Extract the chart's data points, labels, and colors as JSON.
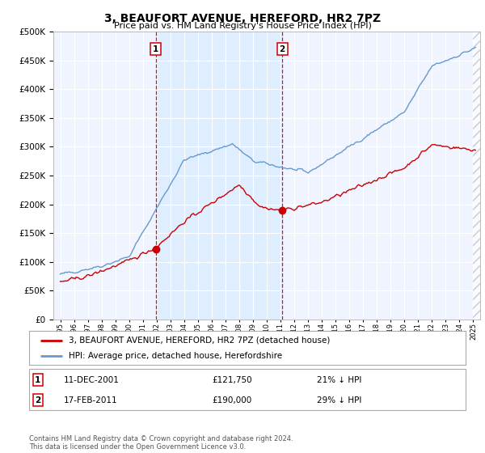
{
  "title": "3, BEAUFORT AVENUE, HEREFORD, HR2 7PZ",
  "subtitle": "Price paid vs. HM Land Registry's House Price Index (HPI)",
  "legend_label_red": "3, BEAUFORT AVENUE, HEREFORD, HR2 7PZ (detached house)",
  "legend_label_blue": "HPI: Average price, detached house, Herefordshire",
  "transaction1_date": "11-DEC-2001",
  "transaction1_price": "£121,750",
  "transaction1_hpi": "21% ↓ HPI",
  "transaction2_date": "17-FEB-2011",
  "transaction2_price": "£190,000",
  "transaction2_hpi": "29% ↓ HPI",
  "footer": "Contains HM Land Registry data © Crown copyright and database right 2024.\nThis data is licensed under the Open Government Licence v3.0.",
  "marker1_x": 2001.95,
  "marker1_y": 121750,
  "marker2_x": 2011.12,
  "marker2_y": 190000,
  "vline1_x": 2001.95,
  "vline2_x": 2011.12,
  "ylim": [
    0,
    500000
  ],
  "xlim": [
    1994.5,
    2025.5
  ],
  "red_color": "#cc0000",
  "blue_color": "#6699cc",
  "shade_color": "#ddeeff",
  "background_color": "#f0f4ff",
  "vline_color": "#cc0000",
  "hatch_color": "#aaaaaa"
}
